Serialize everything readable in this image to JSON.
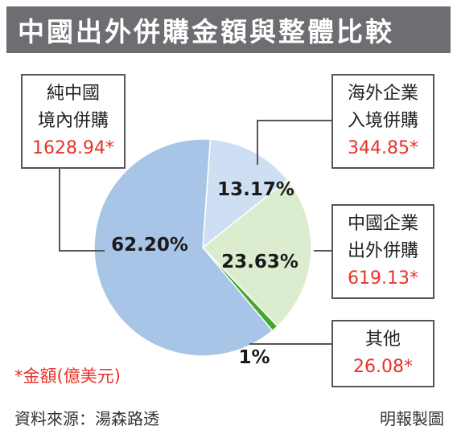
{
  "header": {
    "title": "中國出外併購金額與整體比較"
  },
  "chart_data": {
    "type": "pie",
    "title": "中國出外併購金額與整體比較",
    "unit_note": "*金額(億美元)",
    "slices": [
      {
        "label_line1": "純中國",
        "label_line2": "境內併購",
        "value": 1628.94,
        "value_text": "1628.94*",
        "percent_text": "62.20%",
        "color": "#a8c4e6"
      },
      {
        "label_line1": "海外企業",
        "label_line2": "入境併購",
        "value": 344.85,
        "value_text": "344.85*",
        "percent_text": "13.17%",
        "color": "#cfdff3"
      },
      {
        "label_line1": "中國企業",
        "label_line2": "出外併購",
        "value": 619.13,
        "value_text": "619.13*",
        "percent_text": "23.63%",
        "color": "#dcedcf"
      },
      {
        "label_line1": "其他",
        "label_line2": "",
        "value": 26.08,
        "value_text": "26.08*",
        "percent_text": "1%",
        "color": "#45a82e"
      }
    ]
  },
  "footer": {
    "source": "資料來源：湯森路透",
    "credit": "明報製圖"
  }
}
